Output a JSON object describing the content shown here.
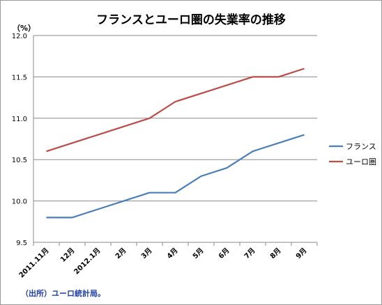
{
  "chart_data": {
    "type": "line",
    "title": "フランスとユーロ圏の失業率の推移",
    "unit_label": "（%）",
    "source_note": "（出所）ユーロ統計局。",
    "categories": [
      "2011.11月",
      "12月",
      "2012.1月",
      "2月",
      "3月",
      "4月",
      "5月",
      "6月",
      "7月",
      "8月",
      "9月"
    ],
    "series": [
      {
        "name": "フランス",
        "color": "#4a7ebb",
        "values": [
          9.8,
          9.8,
          9.9,
          10.0,
          10.1,
          10.1,
          10.3,
          10.4,
          10.6,
          10.7,
          10.8
        ]
      },
      {
        "name": "ユーロ圏",
        "color": "#be4b48",
        "values": [
          10.6,
          10.7,
          10.8,
          10.9,
          11.0,
          11.2,
          11.3,
          11.4,
          11.5,
          11.5,
          11.6
        ]
      }
    ],
    "ylim": [
      9.5,
      12.0
    ],
    "yticks": [
      "9.5",
      "10.0",
      "10.5",
      "11.0",
      "11.5",
      "12.0"
    ],
    "grid": true,
    "legend": "right"
  }
}
